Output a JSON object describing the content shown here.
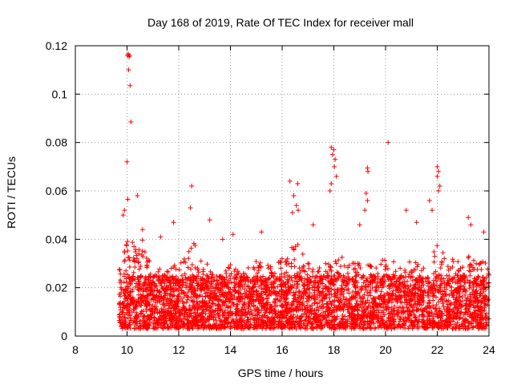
{
  "chart_data": {
    "type": "scatter",
    "title": "Day 168 of 2019, Rate Of TEC Index for receiver mall",
    "xlabel": "GPS time / hours",
    "ylabel": "ROTI / TECUs",
    "xlim": [
      8,
      24
    ],
    "ylim": [
      0,
      0.12
    ],
    "grid": true,
    "marker": "+",
    "series": [
      {
        "name": "ROTI",
        "color": "#ff0000"
      }
    ],
    "x_ticks": [
      {
        "value": 8,
        "label": "8"
      },
      {
        "value": 10,
        "label": "10"
      },
      {
        "value": 12,
        "label": "12"
      },
      {
        "value": 14,
        "label": "14"
      },
      {
        "value": 16,
        "label": "16"
      },
      {
        "value": 18,
        "label": "18"
      },
      {
        "value": 20,
        "label": "20"
      },
      {
        "value": 22,
        "label": "22"
      },
      {
        "value": 24,
        "label": "24"
      }
    ],
    "y_ticks": [
      {
        "value": 0,
        "label": "0"
      },
      {
        "value": 0.02,
        "label": "0.02"
      },
      {
        "value": 0.04,
        "label": "0.04"
      },
      {
        "value": 0.06,
        "label": "0.06"
      },
      {
        "value": 0.08,
        "label": "0.08"
      },
      {
        "value": 0.1,
        "label": "0.1"
      },
      {
        "value": 0.12,
        "label": "0.12"
      }
    ],
    "dense_band": {
      "x_start": 9.7,
      "x_end": 24,
      "y_min": 0.003,
      "y_max": 0.025
    },
    "envelope": [
      [
        9.7,
        0.028
      ],
      [
        10.0,
        0.04
      ],
      [
        10.5,
        0.042
      ],
      [
        11.0,
        0.03
      ],
      [
        11.5,
        0.028
      ],
      [
        12.0,
        0.03
      ],
      [
        12.5,
        0.04
      ],
      [
        13.0,
        0.032
      ],
      [
        13.5,
        0.022
      ],
      [
        14.0,
        0.03
      ],
      [
        14.5,
        0.026
      ],
      [
        15.0,
        0.032
      ],
      [
        15.5,
        0.03
      ],
      [
        16.0,
        0.033
      ],
      [
        16.5,
        0.04
      ],
      [
        17.0,
        0.03
      ],
      [
        17.5,
        0.028
      ],
      [
        18.0,
        0.034
      ],
      [
        18.5,
        0.032
      ],
      [
        19.0,
        0.03
      ],
      [
        19.5,
        0.03
      ],
      [
        20.0,
        0.032
      ],
      [
        20.5,
        0.03
      ],
      [
        21.0,
        0.032
      ],
      [
        21.5,
        0.028
      ],
      [
        22.0,
        0.038
      ],
      [
        22.5,
        0.032
      ],
      [
        23.0,
        0.034
      ],
      [
        23.5,
        0.032
      ],
      [
        24.0,
        0.03
      ]
    ],
    "peaks": [
      [
        10.02,
        0.116
      ],
      [
        10.05,
        0.1165
      ],
      [
        10.08,
        0.1155
      ],
      [
        10.1,
        0.116
      ],
      [
        10.06,
        0.11
      ],
      [
        10.12,
        0.1035
      ],
      [
        10.15,
        0.0885
      ],
      [
        10.0,
        0.072
      ],
      [
        10.03,
        0.0565
      ],
      [
        10.4,
        0.058
      ],
      [
        9.9,
        0.052
      ],
      [
        9.85,
        0.05
      ],
      [
        12.5,
        0.062
      ],
      [
        12.45,
        0.053
      ],
      [
        16.3,
        0.064
      ],
      [
        16.6,
        0.063
      ],
      [
        16.45,
        0.058
      ],
      [
        16.55,
        0.054
      ],
      [
        16.4,
        0.051
      ],
      [
        16.62,
        0.052
      ],
      [
        17.9,
        0.078
      ],
      [
        18.0,
        0.077
      ],
      [
        17.95,
        0.075
      ],
      [
        18.05,
        0.073
      ],
      [
        18.02,
        0.07
      ],
      [
        18.1,
        0.066
      ],
      [
        17.9,
        0.063
      ],
      [
        17.85,
        0.06
      ],
      [
        19.3,
        0.0695
      ],
      [
        19.32,
        0.068
      ],
      [
        19.25,
        0.059
      ],
      [
        19.3,
        0.056
      ],
      [
        19.2,
        0.052
      ],
      [
        20.1,
        0.08
      ],
      [
        22.0,
        0.07
      ],
      [
        22.05,
        0.068
      ],
      [
        22.0,
        0.066
      ],
      [
        22.1,
        0.062
      ],
      [
        22.05,
        0.06
      ],
      [
        21.7,
        0.056
      ],
      [
        21.8,
        0.052
      ],
      [
        23.2,
        0.049
      ],
      [
        23.3,
        0.046
      ],
      [
        20.8,
        0.052
      ],
      [
        21.2,
        0.047
      ],
      [
        11.8,
        0.047
      ],
      [
        13.2,
        0.048
      ],
      [
        14.1,
        0.042
      ],
      [
        15.2,
        0.043
      ],
      [
        17.2,
        0.046
      ],
      [
        19.0,
        0.046
      ],
      [
        23.8,
        0.043
      ],
      [
        10.6,
        0.044
      ],
      [
        11.3,
        0.041
      ],
      [
        13.7,
        0.04
      ]
    ]
  }
}
